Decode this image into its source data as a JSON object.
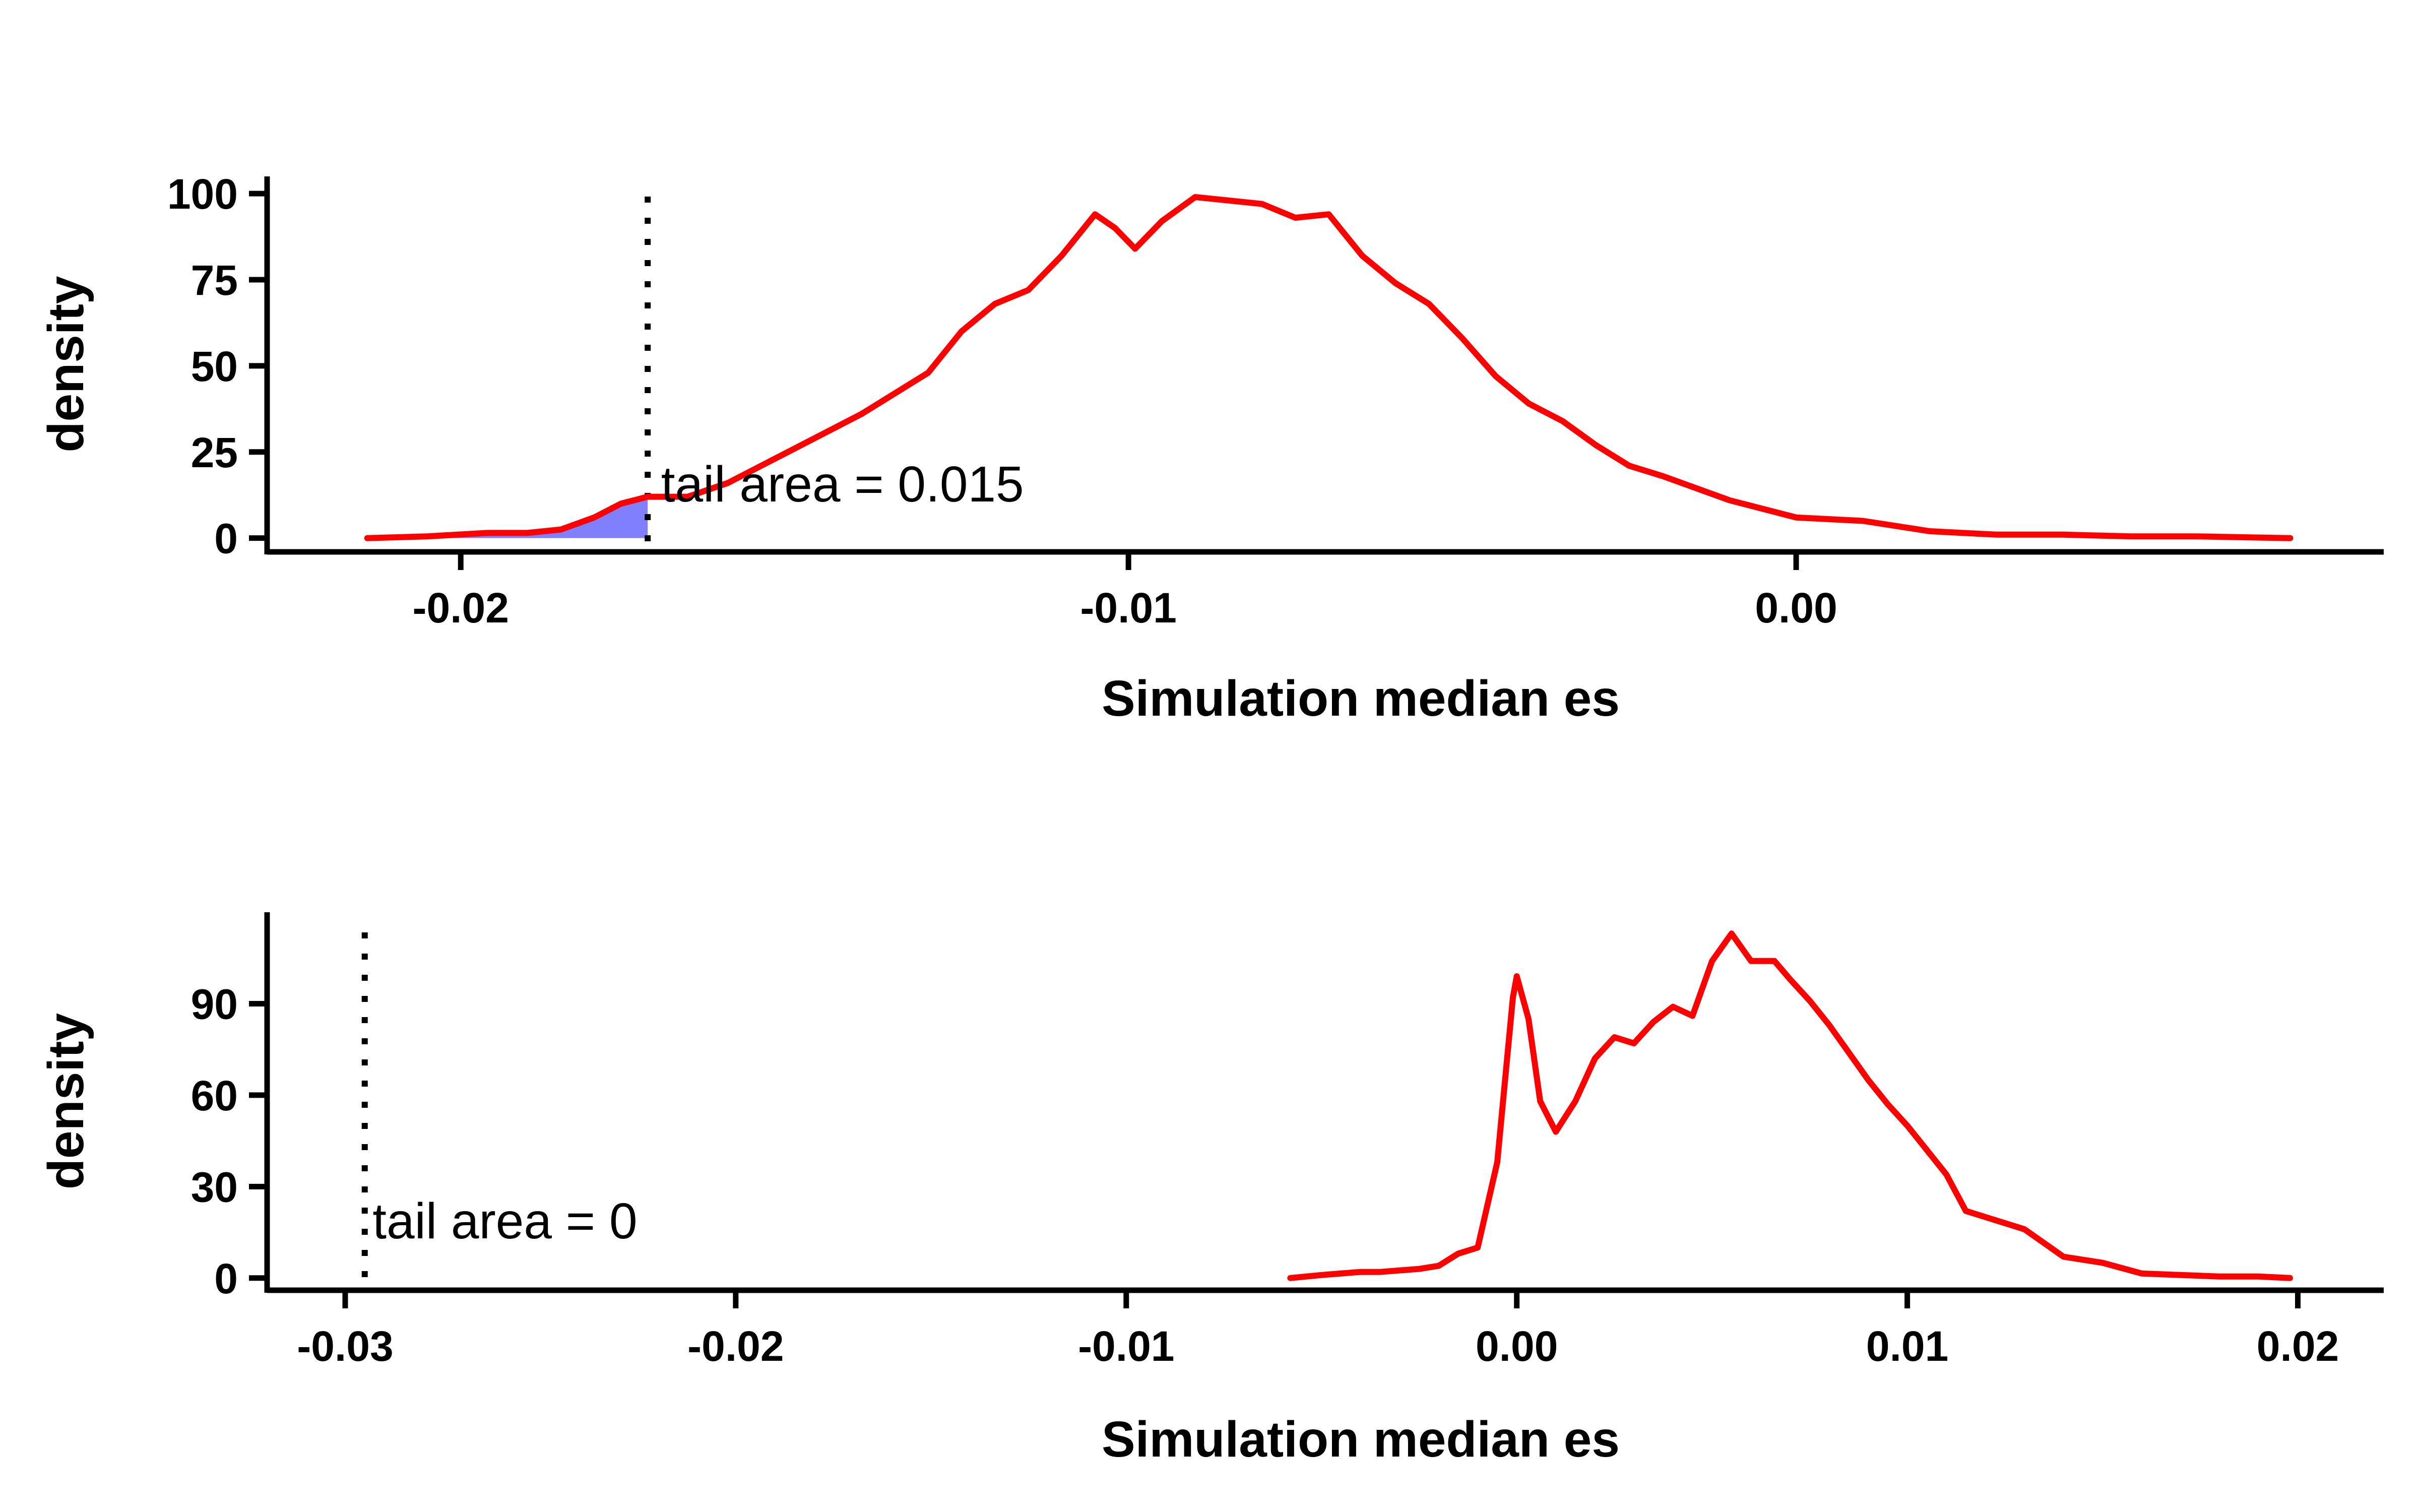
{
  "chart_data": [
    {
      "type": "line",
      "xlabel": "Simulation median es",
      "ylabel": "density",
      "x_ticks": [
        -0.02,
        -0.01,
        0.0
      ],
      "x_tick_labels": [
        "-0.02",
        "-0.01",
        "0.00"
      ],
      "y_ticks": [
        0,
        25,
        50,
        75,
        100
      ],
      "y_tick_labels": [
        "0",
        "25",
        "50",
        "75",
        "100"
      ],
      "xlim": [
        -0.0229,
        0.0088
      ],
      "ylim": [
        -4,
        105
      ],
      "grid": false,
      "series": [
        {
          "color": "#ff0000",
          "points": [
            [
              -0.0214,
              0
            ],
            [
              -0.0205,
              0.5
            ],
            [
              -0.0196,
              1.5
            ],
            [
              -0.019,
              1.5
            ],
            [
              -0.0185,
              2.5
            ],
            [
              -0.018,
              6
            ],
            [
              -0.0176,
              10
            ],
            [
              -0.0172,
              12
            ],
            [
              -0.0166,
              12
            ],
            [
              -0.016,
              16
            ],
            [
              -0.015,
              26
            ],
            [
              -0.014,
              36
            ],
            [
              -0.013,
              48
            ],
            [
              -0.0125,
              60
            ],
            [
              -0.012,
              68
            ],
            [
              -0.0115,
              72
            ],
            [
              -0.011,
              82
            ],
            [
              -0.0105,
              94
            ],
            [
              -0.0102,
              90
            ],
            [
              -0.0099,
              84
            ],
            [
              -0.0095,
              92
            ],
            [
              -0.009,
              99
            ],
            [
              -0.0085,
              98
            ],
            [
              -0.008,
              97
            ],
            [
              -0.0075,
              93
            ],
            [
              -0.007,
              94
            ],
            [
              -0.0065,
              82
            ],
            [
              -0.006,
              74
            ],
            [
              -0.0055,
              68
            ],
            [
              -0.005,
              58
            ],
            [
              -0.0045,
              47
            ],
            [
              -0.004,
              39
            ],
            [
              -0.0035,
              34
            ],
            [
              -0.003,
              27
            ],
            [
              -0.0025,
              21
            ],
            [
              -0.002,
              18
            ],
            [
              -0.001,
              11
            ],
            [
              0.0,
              6
            ],
            [
              0.001,
              5
            ],
            [
              0.002,
              2
            ],
            [
              0.003,
              1
            ],
            [
              0.004,
              1
            ],
            [
              0.005,
              0.5
            ],
            [
              0.006,
              0.5
            ],
            [
              0.0074,
              0
            ]
          ]
        }
      ],
      "tail_threshold": -0.0172,
      "tail_fill_color": "#8080ff",
      "annotation": {
        "text": "tail area =  0.015",
        "x": -0.017,
        "y": 15
      }
    },
    {
      "type": "line",
      "xlabel": "Simulation median es",
      "ylabel": "density",
      "x_ticks": [
        -0.03,
        -0.02,
        -0.01,
        0.0,
        0.01,
        0.02
      ],
      "x_tick_labels": [
        "-0.03",
        "-0.02",
        "-0.01",
        "0.00",
        "0.01",
        "0.02"
      ],
      "y_ticks": [
        0,
        30,
        60,
        90
      ],
      "y_tick_labels": [
        "0",
        "30",
        "60",
        "90"
      ],
      "xlim": [
        -0.032,
        0.0222
      ],
      "ylim": [
        -4,
        120
      ],
      "grid": false,
      "series": [
        {
          "color": "#ff0000",
          "points": [
            [
              -0.0058,
              0
            ],
            [
              -0.005,
              1
            ],
            [
              -0.004,
              2
            ],
            [
              -0.0035,
              2
            ],
            [
              -0.003,
              2.5
            ],
            [
              -0.0025,
              3
            ],
            [
              -0.002,
              4
            ],
            [
              -0.0015,
              8
            ],
            [
              -0.001,
              10
            ],
            [
              -0.0005,
              38
            ],
            [
              -0.0001,
              92
            ],
            [
              0.0,
              99
            ],
            [
              0.0003,
              85
            ],
            [
              0.0006,
              58
            ],
            [
              0.001,
              48
            ],
            [
              0.0015,
              58
            ],
            [
              0.002,
              72
            ],
            [
              0.0025,
              79
            ],
            [
              0.003,
              77
            ],
            [
              0.0035,
              84
            ],
            [
              0.004,
              89
            ],
            [
              0.0045,
              86
            ],
            [
              0.005,
              104
            ],
            [
              0.0055,
              113
            ],
            [
              0.006,
              104
            ],
            [
              0.0066,
              104
            ],
            [
              0.007,
              98
            ],
            [
              0.0075,
              91
            ],
            [
              0.008,
              83
            ],
            [
              0.0085,
              74
            ],
            [
              0.009,
              65
            ],
            [
              0.0095,
              57
            ],
            [
              0.01,
              50
            ],
            [
              0.0105,
              42
            ],
            [
              0.011,
              34
            ],
            [
              0.0115,
              22
            ],
            [
              0.012,
              20
            ],
            [
              0.013,
              16
            ],
            [
              0.014,
              7
            ],
            [
              0.015,
              5
            ],
            [
              0.016,
              1.5
            ],
            [
              0.017,
              1
            ],
            [
              0.018,
              0.5
            ],
            [
              0.019,
              0.5
            ],
            [
              0.0198,
              0
            ]
          ]
        }
      ],
      "tail_threshold": -0.0295,
      "annotation": {
        "text": "tail area =  0",
        "x": -0.0293,
        "y": 18
      }
    }
  ]
}
